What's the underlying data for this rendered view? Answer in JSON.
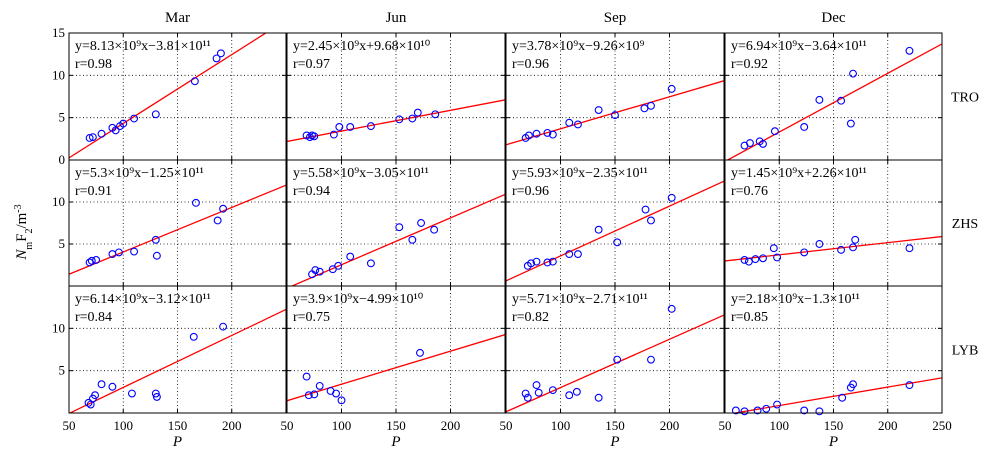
{
  "figure": {
    "ylabel": "N_mF_2/m^-3",
    "xlabel": "P"
  },
  "chart_data": {
    "type": "scatter",
    "columns": [
      "Mar",
      "Jun",
      "Sep",
      "Dec"
    ],
    "rows": [
      "TRO",
      "ZHS",
      "LYB"
    ],
    "xlim": [
      50,
      250
    ],
    "ylim": [
      0,
      15
    ],
    "xticks": [
      50,
      100,
      150,
      200
    ],
    "xticks_last": [
      50,
      100,
      150,
      200,
      250
    ],
    "yticks": [
      0,
      5,
      10,
      15
    ],
    "yticks_lower": [
      5,
      10
    ],
    "grid": "dotted",
    "colors": {
      "points": "#0000ff",
      "fit": "#ff0000"
    },
    "panels": [
      {
        "row": "TRO",
        "col": "Mar",
        "slope": 8.13,
        "intercept": -3.81,
        "eq": "y=8.13×10⁹x−3.81×10¹¹",
        "r": "r=0.98",
        "points": [
          [
            69,
            2.6
          ],
          [
            72,
            2.7
          ],
          [
            80,
            3.1
          ],
          [
            90,
            3.8
          ],
          [
            93,
            3.5
          ],
          [
            97,
            4.0
          ],
          [
            100,
            4.3
          ],
          [
            110,
            4.9
          ],
          [
            130,
            5.4
          ],
          [
            166,
            9.3
          ],
          [
            186,
            12.0
          ],
          [
            190,
            12.6
          ]
        ]
      },
      {
        "row": "TRO",
        "col": "Jun",
        "slope": 2.45,
        "intercept": 0.968,
        "eq": "y=2.45×10⁹x+9.68×10¹⁰",
        "r": "r=0.97",
        "points": [
          [
            68,
            2.9
          ],
          [
            71,
            2.7
          ],
          [
            73,
            2.9
          ],
          [
            75,
            2.8
          ],
          [
            93,
            3.0
          ],
          [
            98,
            3.9
          ],
          [
            108,
            3.9
          ],
          [
            127,
            4.0
          ],
          [
            153,
            4.8
          ],
          [
            165,
            4.9
          ],
          [
            170,
            5.6
          ],
          [
            186,
            5.4
          ]
        ]
      },
      {
        "row": "TRO",
        "col": "Sep",
        "slope": 3.78,
        "intercept": -0.0926,
        "eq": "y=3.78×10⁹x−9.26×10⁹",
        "r": "r=0.96",
        "points": [
          [
            68,
            2.6
          ],
          [
            71,
            2.9
          ],
          [
            78,
            3.1
          ],
          [
            88,
            3.2
          ],
          [
            93,
            3.0
          ],
          [
            108,
            4.4
          ],
          [
            116,
            4.2
          ],
          [
            135,
            5.9
          ],
          [
            150,
            5.3
          ],
          [
            177,
            6.1
          ],
          [
            183,
            6.4
          ],
          [
            202,
            8.4
          ]
        ]
      },
      {
        "row": "TRO",
        "col": "Dec",
        "slope": 6.94,
        "intercept": -3.64,
        "eq": "y=6.94×10⁹x−3.64×10¹¹",
        "r": "r=0.92",
        "points": [
          [
            68,
            1.7
          ],
          [
            73,
            2.0
          ],
          [
            82,
            2.2
          ],
          [
            85,
            1.9
          ],
          [
            96,
            3.4
          ],
          [
            123,
            3.9
          ],
          [
            137,
            7.1
          ],
          [
            157,
            7.0
          ],
          [
            166,
            4.3
          ],
          [
            168,
            10.2
          ],
          [
            220,
            12.9
          ]
        ]
      },
      {
        "row": "ZHS",
        "col": "Mar",
        "slope": 5.3,
        "intercept": -1.25,
        "eq": "y=5.3×10⁹x−1.25×10¹¹",
        "r": "r=0.91",
        "points": [
          [
            69,
            2.8
          ],
          [
            71,
            3.0
          ],
          [
            75,
            3.1
          ],
          [
            90,
            3.8
          ],
          [
            96,
            4.0
          ],
          [
            110,
            4.1
          ],
          [
            130,
            5.5
          ],
          [
            131,
            3.6
          ],
          [
            167,
            9.9
          ],
          [
            187,
            7.8
          ],
          [
            192,
            9.2
          ]
        ]
      },
      {
        "row": "ZHS",
        "col": "Jun",
        "slope": 5.58,
        "intercept": -3.05,
        "eq": "y=5.58×10⁹x−3.05×10¹¹",
        "r": "r=0.94",
        "points": [
          [
            73,
            1.4
          ],
          [
            76,
            1.9
          ],
          [
            80,
            1.7
          ],
          [
            92,
            2.0
          ],
          [
            97,
            2.4
          ],
          [
            108,
            3.5
          ],
          [
            127,
            2.7
          ],
          [
            153,
            7.0
          ],
          [
            165,
            5.5
          ],
          [
            173,
            7.5
          ],
          [
            185,
            6.7
          ]
        ]
      },
      {
        "row": "ZHS",
        "col": "Sep",
        "slope": 5.93,
        "intercept": -2.35,
        "eq": "y=5.93×10⁹x−2.35×10¹¹",
        "r": "r=0.96",
        "points": [
          [
            70,
            2.4
          ],
          [
            73,
            2.7
          ],
          [
            78,
            2.9
          ],
          [
            88,
            2.8
          ],
          [
            93,
            2.9
          ],
          [
            108,
            3.8
          ],
          [
            116,
            3.8
          ],
          [
            135,
            6.7
          ],
          [
            152,
            5.2
          ],
          [
            178,
            9.1
          ],
          [
            183,
            7.8
          ],
          [
            202,
            10.5
          ]
        ]
      },
      {
        "row": "ZHS",
        "col": "Dec",
        "slope": 1.45,
        "intercept": 2.26,
        "eq": "y=1.45×10⁹x+2.26×10¹¹",
        "r": "r=0.76",
        "points": [
          [
            68,
            3.1
          ],
          [
            72,
            2.9
          ],
          [
            78,
            3.2
          ],
          [
            85,
            3.3
          ],
          [
            95,
            4.5
          ],
          [
            98,
            3.4
          ],
          [
            123,
            4.0
          ],
          [
            137,
            5.0
          ],
          [
            157,
            4.3
          ],
          [
            168,
            4.6
          ],
          [
            170,
            5.5
          ],
          [
            220,
            4.5
          ]
        ]
      },
      {
        "row": "LYB",
        "col": "Mar",
        "slope": 6.14,
        "intercept": -3.12,
        "eq": "y=6.14×10⁹x−3.12×10¹¹",
        "r": "r=0.84",
        "points": [
          [
            68,
            1.2
          ],
          [
            70,
            1.0
          ],
          [
            72,
            1.7
          ],
          [
            74,
            2.1
          ],
          [
            80,
            3.4
          ],
          [
            90,
            3.1
          ],
          [
            108,
            2.3
          ],
          [
            130,
            2.3
          ],
          [
            131,
            1.9
          ],
          [
            165,
            9.0
          ],
          [
            192,
            10.2
          ]
        ]
      },
      {
        "row": "LYB",
        "col": "Jun",
        "slope": 3.9,
        "intercept": -0.499,
        "eq": "y=3.9×10⁹x−4.99×10¹⁰",
        "r": "r=0.75",
        "points": [
          [
            68,
            4.3
          ],
          [
            70,
            2.1
          ],
          [
            75,
            2.2
          ],
          [
            80,
            3.2
          ],
          [
            90,
            2.6
          ],
          [
            95,
            2.3
          ],
          [
            100,
            1.5
          ],
          [
            172,
            7.1
          ]
        ]
      },
      {
        "row": "LYB",
        "col": "Sep",
        "slope": 5.71,
        "intercept": -2.71,
        "eq": "y=5.71×10⁹x−2.71×10¹¹",
        "r": "r=0.82",
        "points": [
          [
            68,
            2.3
          ],
          [
            70,
            1.8
          ],
          [
            78,
            3.3
          ],
          [
            80,
            2.4
          ],
          [
            93,
            2.7
          ],
          [
            108,
            2.1
          ],
          [
            115,
            2.5
          ],
          [
            135,
            1.8
          ],
          [
            152,
            6.3
          ],
          [
            183,
            6.3
          ],
          [
            202,
            12.3
          ]
        ]
      },
      {
        "row": "LYB",
        "col": "Dec",
        "slope": 2.18,
        "intercept": -1.3,
        "eq": "y=2.18×10⁹x−1.3×10¹¹",
        "r": "r=0.85",
        "points": [
          [
            60,
            0.3
          ],
          [
            68,
            0.2
          ],
          [
            80,
            0.3
          ],
          [
            88,
            0.5
          ],
          [
            98,
            1.0
          ],
          [
            123,
            0.3
          ],
          [
            137,
            0.2
          ],
          [
            158,
            1.8
          ],
          [
            166,
            3.0
          ],
          [
            168,
            3.4
          ],
          [
            220,
            3.3
          ]
        ]
      }
    ]
  }
}
